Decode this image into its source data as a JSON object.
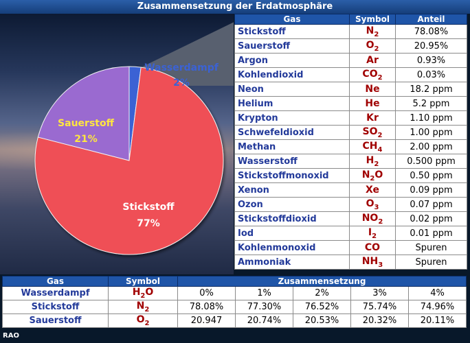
{
  "title": "Zusammensetzung der Erdatmosphäre",
  "credit": "RAO",
  "chart_data": {
    "type": "pie",
    "slices": [
      {
        "label": "Wasserdampf",
        "value": 2,
        "value_label": "2%",
        "color": "#3b62d4",
        "label_color": "#3b62d4"
      },
      {
        "label": "Stickstoff",
        "value": 77,
        "value_label": "77%",
        "color": "#ef4f57",
        "label_color": "#ffffff"
      },
      {
        "label": "Sauerstoff",
        "value": 21,
        "value_label": "21%",
        "color": "#9a6ad0",
        "label_color": "#ffe640"
      }
    ]
  },
  "gas_table": {
    "headers": [
      "Gas",
      "Symbol",
      "Anteil"
    ],
    "rows": [
      {
        "gas": "Stickstoff",
        "symbol": "N2",
        "share": "78.08%"
      },
      {
        "gas": "Sauerstoff",
        "symbol": "O2",
        "share": "20.95%"
      },
      {
        "gas": "Argon",
        "symbol": "Ar",
        "share": "0.93%"
      },
      {
        "gas": "Kohlendioxid",
        "symbol": "CO2",
        "share": "0.03%"
      },
      {
        "gas": "Neon",
        "symbol": "Ne",
        "share": "18.2 ppm"
      },
      {
        "gas": "Helium",
        "symbol": "He",
        "share": "5.2 ppm"
      },
      {
        "gas": "Krypton",
        "symbol": "Kr",
        "share": "1.10 ppm"
      },
      {
        "gas": "Schwefeldioxid",
        "symbol": "SO2",
        "share": "1.00 ppm"
      },
      {
        "gas": "Methan",
        "symbol": "CH4",
        "share": "2.00 ppm"
      },
      {
        "gas": "Wasserstoff",
        "symbol": "H2",
        "share": "0.500 ppm"
      },
      {
        "gas": "Stickstoffmonoxid",
        "symbol": "N2O",
        "share": "0.50 ppm"
      },
      {
        "gas": "Xenon",
        "symbol": "Xe",
        "share": "0.09 ppm"
      },
      {
        "gas": "Ozon",
        "symbol": "O3",
        "share": "0.07 ppm"
      },
      {
        "gas": "Stickstoffdioxid",
        "symbol": "NO2",
        "share": "0.02 ppm"
      },
      {
        "gas": "Iod",
        "symbol": "I2",
        "share": "0.01 ppm"
      },
      {
        "gas": "Kohlenmonoxid",
        "symbol": "CO",
        "share": "Spuren"
      },
      {
        "gas": "Ammoniak",
        "symbol": "NH3",
        "share": "Spuren"
      }
    ]
  },
  "composition_table": {
    "headers": [
      "Gas",
      "Symbol",
      "Zusammensetzung"
    ],
    "rows": [
      {
        "gas": "Wasserdampf",
        "symbol": "H2O",
        "values": [
          "0%",
          "1%",
          "2%",
          "3%",
          "4%"
        ]
      },
      {
        "gas": "Stickstoff",
        "symbol": "N2",
        "values": [
          "78.08%",
          "77.30%",
          "76.52%",
          "75.74%",
          "74.96%"
        ]
      },
      {
        "gas": "Sauerstoff",
        "symbol": "O2",
        "values": [
          "20.947",
          "20.74%",
          "20.53%",
          "20.32%",
          "20.11%"
        ]
      }
    ]
  }
}
